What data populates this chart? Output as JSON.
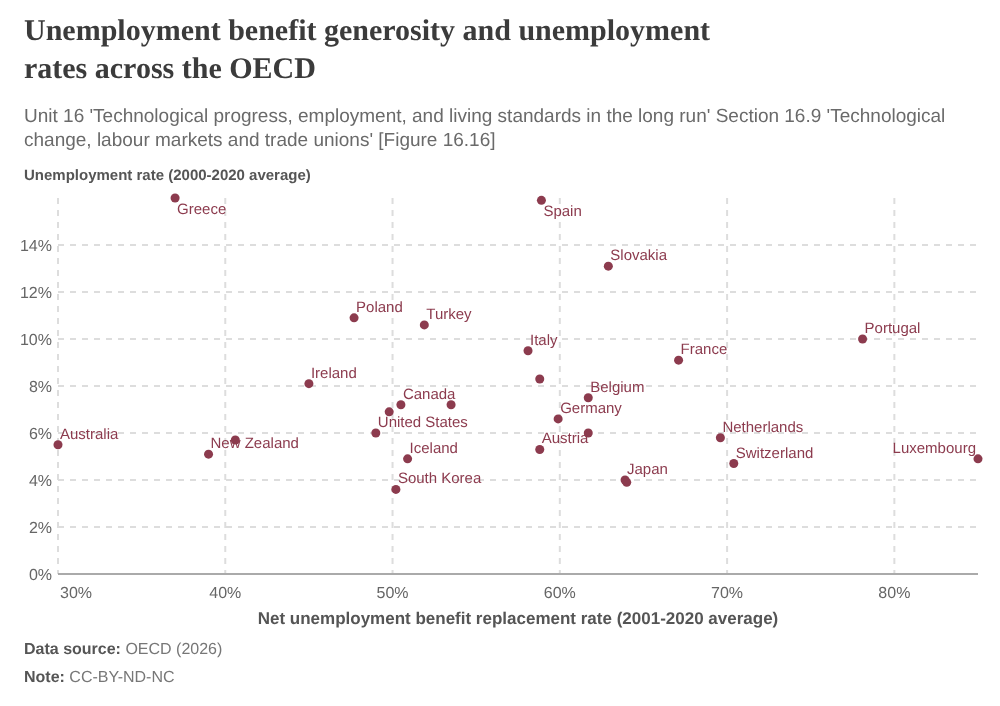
{
  "chart_data": {
    "type": "scatter",
    "title": "Unemployment benefit generosity and unemployment rates across the OECD",
    "subtitle": "Unit 16 'Technological progress, employment, and living standards in the long run' Section 16.9 'Technological change, labour markets and trade unions' [Figure 16.16]",
    "xlabel": "Net unemployment benefit replacement rate (2001-2020 average)",
    "ylabel": "Unemployment rate (2000-2020 average)",
    "x": [
      37.0,
      47.7,
      51.9,
      45.0,
      50.5,
      53.5,
      49.8,
      49.0,
      30.0,
      39.0,
      40.6,
      50.9,
      50.2,
      58.9,
      62.9,
      58.1,
      78.1,
      67.1,
      58.8,
      61.7,
      59.9,
      61.7,
      58.8,
      69.6,
      70.4,
      63.9,
      64.0,
      85.0
    ],
    "values": [
      16.0,
      10.9,
      10.6,
      8.1,
      7.2,
      7.2,
      6.9,
      6.0,
      5.5,
      5.1,
      5.7,
      4.9,
      3.6,
      15.9,
      13.1,
      9.5,
      10.0,
      9.1,
      8.3,
      7.5,
      6.6,
      6.0,
      5.3,
      5.8,
      4.7,
      4.0,
      3.9,
      4.9
    ],
    "color": "#8c3b4e",
    "marker": "circle",
    "annotations": [
      {
        "text": "Greece",
        "x": 37.0,
        "y": 16.0
      },
      {
        "text": "Poland",
        "x": 47.7,
        "y": 10.9
      },
      {
        "text": "Turkey",
        "x": 51.9,
        "y": 10.6
      },
      {
        "text": "Ireland",
        "x": 45.0,
        "y": 8.1
      },
      {
        "text": "Canada",
        "x": 50.5,
        "y": 7.2
      },
      {
        "text": "United States",
        "x": 49.0,
        "y": 6.0
      },
      {
        "text": "Australia",
        "x": 30.0,
        "y": 5.5
      },
      {
        "text": "New Zealand",
        "x": 39.0,
        "y": 5.1
      },
      {
        "text": "Iceland",
        "x": 50.9,
        "y": 4.9
      },
      {
        "text": "South Korea",
        "x": 50.2,
        "y": 3.6
      },
      {
        "text": "Spain",
        "x": 58.9,
        "y": 15.9
      },
      {
        "text": "Slovakia",
        "x": 62.9,
        "y": 13.1
      },
      {
        "text": "Italy",
        "x": 58.1,
        "y": 9.5
      },
      {
        "text": "Portugal",
        "x": 78.1,
        "y": 10.0
      },
      {
        "text": "France",
        "x": 67.1,
        "y": 9.1
      },
      {
        "text": "Belgium",
        "x": 61.7,
        "y": 7.5
      },
      {
        "text": "Germany",
        "x": 59.9,
        "y": 6.6
      },
      {
        "text": "Austria",
        "x": 58.8,
        "y": 5.3
      },
      {
        "text": "Netherlands",
        "x": 69.6,
        "y": 5.8
      },
      {
        "text": "Switzerland",
        "x": 70.4,
        "y": 4.7
      },
      {
        "text": "Japan",
        "x": 63.9,
        "y": 4.0
      },
      {
        "text": "Luxembourg",
        "x": 85.0,
        "y": 4.9
      },
      "Data source: OECD (2026)",
      "Note: CC-BY-ND-NC"
    ],
    "xlim": [
      30,
      85
    ],
    "xticks": [
      {
        "value": 30,
        "label": "30%"
      },
      {
        "value": 40,
        "label": "40%"
      },
      {
        "value": 50,
        "label": "50%"
      },
      {
        "value": 60,
        "label": "60%"
      },
      {
        "value": 70,
        "label": "70%"
      },
      {
        "value": 80,
        "label": "80%"
      }
    ],
    "ylim": [
      0,
      16
    ],
    "yticks": [
      {
        "value": 0,
        "label": "0%"
      },
      {
        "value": 2,
        "label": "2%"
      },
      {
        "value": 4,
        "label": "4%"
      },
      {
        "value": 6,
        "label": "6%"
      },
      {
        "value": 8,
        "label": "8%"
      },
      {
        "value": 10,
        "label": "10%"
      },
      {
        "value": 12,
        "label": "12%"
      },
      {
        "value": 14,
        "label": "14%"
      }
    ],
    "grid": true
  }
}
